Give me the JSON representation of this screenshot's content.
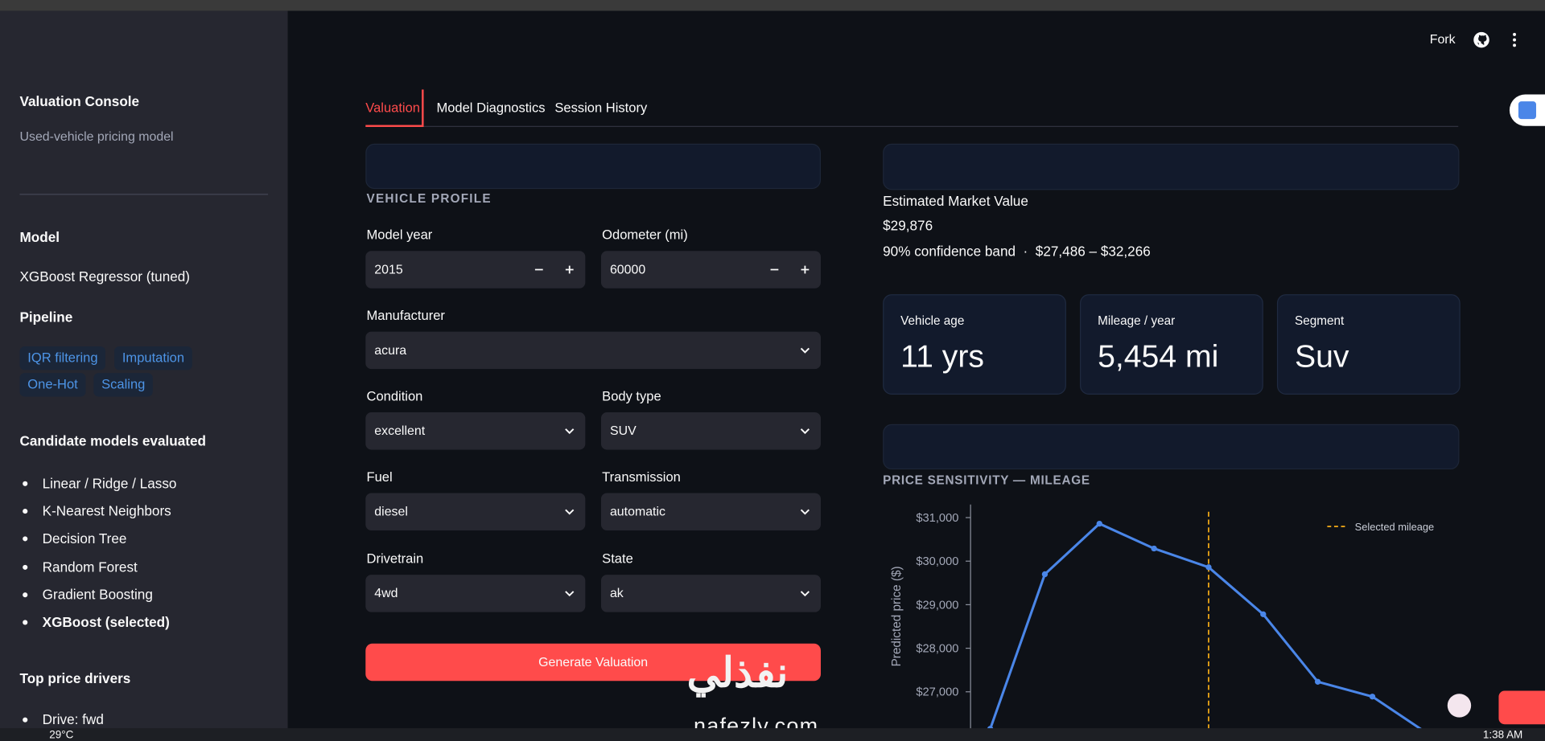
{
  "top_bar": {
    "fork": "Fork"
  },
  "sidebar": {
    "title": "Valuation Console",
    "subtitle": "Used-vehicle pricing model",
    "model_heading": "Model",
    "model": "XGBoost Regressor (tuned)",
    "pipeline_heading": "Pipeline",
    "pipeline_tags": [
      "IQR filtering",
      "Imputation",
      "One-Hot",
      "Scaling"
    ],
    "candidates_heading": "Candidate models evaluated",
    "candidates": [
      "Linear / Ridge / Lasso",
      "K-Nearest Neighbors",
      "Decision Tree",
      "Random Forest",
      "Gradient Boosting",
      "XGBoost (selected)"
    ],
    "drivers_heading": "Top price drivers",
    "drivers": [
      "Drive: fwd"
    ]
  },
  "tabs": [
    "Valuation",
    "Model Diagnostics",
    "Session History"
  ],
  "form": {
    "section": "VEHICLE PROFILE",
    "model_year": {
      "label": "Model year",
      "value": "2015"
    },
    "odometer": {
      "label": "Odometer (mi)",
      "value": "60000"
    },
    "manufacturer": {
      "label": "Manufacturer",
      "value": "acura"
    },
    "condition": {
      "label": "Condition",
      "value": "excellent"
    },
    "body_type": {
      "label": "Body type",
      "value": "SUV"
    },
    "fuel": {
      "label": "Fuel",
      "value": "diesel"
    },
    "transmission": {
      "label": "Transmission",
      "value": "automatic"
    },
    "drivetrain": {
      "label": "Drivetrain",
      "value": "4wd"
    },
    "state": {
      "label": "State",
      "value": "ak"
    },
    "button": "Generate Valuation"
  },
  "valuation": {
    "label": "Estimated Market Value",
    "value": "$29,876",
    "band": "90% confidence band  ·  $27,486 – $32,266"
  },
  "metrics": [
    {
      "label": "Vehicle age",
      "value": "11 yrs"
    },
    {
      "label": "Mileage / year",
      "value": "5,454 mi"
    },
    {
      "label": "Segment",
      "value": "Suv"
    }
  ],
  "chart": {
    "type": "line",
    "title": "PRICE SENSITIVITY — MILEAGE",
    "y_label": "Predicted price ($)",
    "categories": [
      null,
      null,
      null,
      null,
      null,
      null,
      null,
      null,
      null
    ],
    "series": [
      {
        "color": "#4a86e8",
        "values": [
          26150,
          29700,
          30860,
          30290,
          29860,
          28780,
          27230,
          26890,
          26050
        ]
      }
    ],
    "ylim": [
      26000,
      31300
    ],
    "yticks": [
      {
        "value": 27000,
        "label": "$27,000"
      },
      {
        "value": 28000,
        "label": "$28,000"
      },
      {
        "value": 29000,
        "label": "$29,000"
      },
      {
        "value": 30000,
        "label": "$30,000"
      },
      {
        "value": 31000,
        "label": "$31,000"
      }
    ],
    "reference_line": {
      "label": "Selected mileage",
      "category_index": 4,
      "color": "#e8a317"
    }
  },
  "watermark": {
    "arabic": "نفذلي",
    "latin": "nafezly.com"
  },
  "taskbar": {
    "weather": "29°C",
    "time": "1:38 AM"
  }
}
